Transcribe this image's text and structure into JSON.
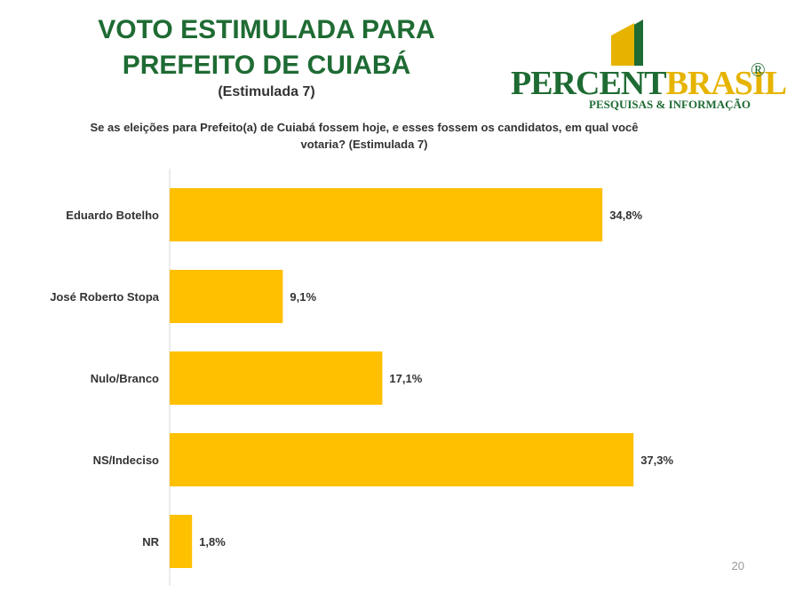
{
  "header": {
    "title_line1": "VOTO ESTIMULADA PARA",
    "title_line2": "PREFEITO DE CUIABÁ",
    "subtitle": "(Estimulada  7)",
    "question_line1": "Se as eleições para Prefeito(a) de Cuiabá fossem hoje, e esses fossem os candidatos, em qual você",
    "question_line2": "votaria? (Estimulada 7)"
  },
  "logo": {
    "name_part1": "PERCENT",
    "name_part2": "BRASIL",
    "registered": "®",
    "tagline": "PESQUISAS & INFORMAÇÃO"
  },
  "page_number": "20",
  "colors": {
    "bar": "#FFC000",
    "title": "#1E6B33",
    "logo_yellow": "#E6B400"
  },
  "chart_data": {
    "type": "bar",
    "orientation": "horizontal",
    "categories": [
      "Eduardo Botelho",
      "José Roberto Stopa",
      "Nulo/Branco",
      "NS/Indeciso",
      "NR"
    ],
    "values": [
      34.8,
      9.1,
      17.1,
      37.3,
      1.8
    ],
    "data_labels": [
      "34,8%",
      "9,1%",
      "17,1%",
      "37,3%",
      "1,8%"
    ],
    "xlim": [
      0,
      40
    ],
    "grid": false,
    "legend": "none"
  }
}
